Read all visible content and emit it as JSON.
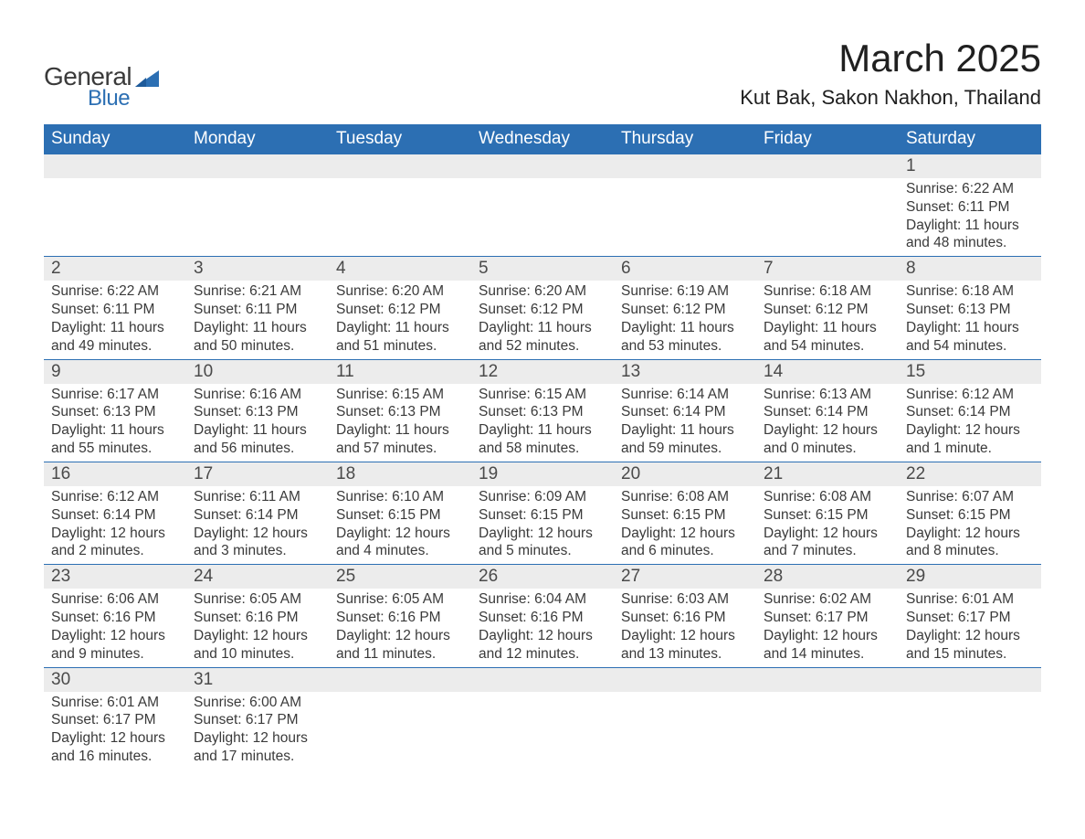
{
  "logo": {
    "text_general": "General",
    "text_blue": "Blue",
    "shape_color": "#2c6fb3",
    "general_color": "#3a3a3a"
  },
  "header": {
    "month_title": "March 2025",
    "location": "Kut Bak, Sakon Nakhon, Thailand"
  },
  "colors": {
    "header_bg": "#2c6fb3",
    "header_fg": "#ffffff",
    "daynum_bg": "#ececec",
    "row_divider": "#2c6fb3",
    "text": "#3a3a3a",
    "title_text": "#202020",
    "page_bg": "#ffffff"
  },
  "typography": {
    "month_title_fontsize": 42,
    "location_fontsize": 22,
    "dow_fontsize": 19,
    "daynum_fontsize": 19,
    "body_fontsize": 15.5,
    "font_family": "Arial"
  },
  "days_of_week": [
    "Sunday",
    "Monday",
    "Tuesday",
    "Wednesday",
    "Thursday",
    "Friday",
    "Saturday"
  ],
  "weeks": [
    [
      {
        "day": "",
        "sunrise": "",
        "sunset": "",
        "daylight": ""
      },
      {
        "day": "",
        "sunrise": "",
        "sunset": "",
        "daylight": ""
      },
      {
        "day": "",
        "sunrise": "",
        "sunset": "",
        "daylight": ""
      },
      {
        "day": "",
        "sunrise": "",
        "sunset": "",
        "daylight": ""
      },
      {
        "day": "",
        "sunrise": "",
        "sunset": "",
        "daylight": ""
      },
      {
        "day": "",
        "sunrise": "",
        "sunset": "",
        "daylight": ""
      },
      {
        "day": "1",
        "sunrise": "Sunrise: 6:22 AM",
        "sunset": "Sunset: 6:11 PM",
        "daylight": "Daylight: 11 hours and 48 minutes."
      }
    ],
    [
      {
        "day": "2",
        "sunrise": "Sunrise: 6:22 AM",
        "sunset": "Sunset: 6:11 PM",
        "daylight": "Daylight: 11 hours and 49 minutes."
      },
      {
        "day": "3",
        "sunrise": "Sunrise: 6:21 AM",
        "sunset": "Sunset: 6:11 PM",
        "daylight": "Daylight: 11 hours and 50 minutes."
      },
      {
        "day": "4",
        "sunrise": "Sunrise: 6:20 AM",
        "sunset": "Sunset: 6:12 PM",
        "daylight": "Daylight: 11 hours and 51 minutes."
      },
      {
        "day": "5",
        "sunrise": "Sunrise: 6:20 AM",
        "sunset": "Sunset: 6:12 PM",
        "daylight": "Daylight: 11 hours and 52 minutes."
      },
      {
        "day": "6",
        "sunrise": "Sunrise: 6:19 AM",
        "sunset": "Sunset: 6:12 PM",
        "daylight": "Daylight: 11 hours and 53 minutes."
      },
      {
        "day": "7",
        "sunrise": "Sunrise: 6:18 AM",
        "sunset": "Sunset: 6:12 PM",
        "daylight": "Daylight: 11 hours and 54 minutes."
      },
      {
        "day": "8",
        "sunrise": "Sunrise: 6:18 AM",
        "sunset": "Sunset: 6:13 PM",
        "daylight": "Daylight: 11 hours and 54 minutes."
      }
    ],
    [
      {
        "day": "9",
        "sunrise": "Sunrise: 6:17 AM",
        "sunset": "Sunset: 6:13 PM",
        "daylight": "Daylight: 11 hours and 55 minutes."
      },
      {
        "day": "10",
        "sunrise": "Sunrise: 6:16 AM",
        "sunset": "Sunset: 6:13 PM",
        "daylight": "Daylight: 11 hours and 56 minutes."
      },
      {
        "day": "11",
        "sunrise": "Sunrise: 6:15 AM",
        "sunset": "Sunset: 6:13 PM",
        "daylight": "Daylight: 11 hours and 57 minutes."
      },
      {
        "day": "12",
        "sunrise": "Sunrise: 6:15 AM",
        "sunset": "Sunset: 6:13 PM",
        "daylight": "Daylight: 11 hours and 58 minutes."
      },
      {
        "day": "13",
        "sunrise": "Sunrise: 6:14 AM",
        "sunset": "Sunset: 6:14 PM",
        "daylight": "Daylight: 11 hours and 59 minutes."
      },
      {
        "day": "14",
        "sunrise": "Sunrise: 6:13 AM",
        "sunset": "Sunset: 6:14 PM",
        "daylight": "Daylight: 12 hours and 0 minutes."
      },
      {
        "day": "15",
        "sunrise": "Sunrise: 6:12 AM",
        "sunset": "Sunset: 6:14 PM",
        "daylight": "Daylight: 12 hours and 1 minute."
      }
    ],
    [
      {
        "day": "16",
        "sunrise": "Sunrise: 6:12 AM",
        "sunset": "Sunset: 6:14 PM",
        "daylight": "Daylight: 12 hours and 2 minutes."
      },
      {
        "day": "17",
        "sunrise": "Sunrise: 6:11 AM",
        "sunset": "Sunset: 6:14 PM",
        "daylight": "Daylight: 12 hours and 3 minutes."
      },
      {
        "day": "18",
        "sunrise": "Sunrise: 6:10 AM",
        "sunset": "Sunset: 6:15 PM",
        "daylight": "Daylight: 12 hours and 4 minutes."
      },
      {
        "day": "19",
        "sunrise": "Sunrise: 6:09 AM",
        "sunset": "Sunset: 6:15 PM",
        "daylight": "Daylight: 12 hours and 5 minutes."
      },
      {
        "day": "20",
        "sunrise": "Sunrise: 6:08 AM",
        "sunset": "Sunset: 6:15 PM",
        "daylight": "Daylight: 12 hours and 6 minutes."
      },
      {
        "day": "21",
        "sunrise": "Sunrise: 6:08 AM",
        "sunset": "Sunset: 6:15 PM",
        "daylight": "Daylight: 12 hours and 7 minutes."
      },
      {
        "day": "22",
        "sunrise": "Sunrise: 6:07 AM",
        "sunset": "Sunset: 6:15 PM",
        "daylight": "Daylight: 12 hours and 8 minutes."
      }
    ],
    [
      {
        "day": "23",
        "sunrise": "Sunrise: 6:06 AM",
        "sunset": "Sunset: 6:16 PM",
        "daylight": "Daylight: 12 hours and 9 minutes."
      },
      {
        "day": "24",
        "sunrise": "Sunrise: 6:05 AM",
        "sunset": "Sunset: 6:16 PM",
        "daylight": "Daylight: 12 hours and 10 minutes."
      },
      {
        "day": "25",
        "sunrise": "Sunrise: 6:05 AM",
        "sunset": "Sunset: 6:16 PM",
        "daylight": "Daylight: 12 hours and 11 minutes."
      },
      {
        "day": "26",
        "sunrise": "Sunrise: 6:04 AM",
        "sunset": "Sunset: 6:16 PM",
        "daylight": "Daylight: 12 hours and 12 minutes."
      },
      {
        "day": "27",
        "sunrise": "Sunrise: 6:03 AM",
        "sunset": "Sunset: 6:16 PM",
        "daylight": "Daylight: 12 hours and 13 minutes."
      },
      {
        "day": "28",
        "sunrise": "Sunrise: 6:02 AM",
        "sunset": "Sunset: 6:17 PM",
        "daylight": "Daylight: 12 hours and 14 minutes."
      },
      {
        "day": "29",
        "sunrise": "Sunrise: 6:01 AM",
        "sunset": "Sunset: 6:17 PM",
        "daylight": "Daylight: 12 hours and 15 minutes."
      }
    ],
    [
      {
        "day": "30",
        "sunrise": "Sunrise: 6:01 AM",
        "sunset": "Sunset: 6:17 PM",
        "daylight": "Daylight: 12 hours and 16 minutes."
      },
      {
        "day": "31",
        "sunrise": "Sunrise: 6:00 AM",
        "sunset": "Sunset: 6:17 PM",
        "daylight": "Daylight: 12 hours and 17 minutes."
      },
      {
        "day": "",
        "sunrise": "",
        "sunset": "",
        "daylight": ""
      },
      {
        "day": "",
        "sunrise": "",
        "sunset": "",
        "daylight": ""
      },
      {
        "day": "",
        "sunrise": "",
        "sunset": "",
        "daylight": ""
      },
      {
        "day": "",
        "sunrise": "",
        "sunset": "",
        "daylight": ""
      },
      {
        "day": "",
        "sunrise": "",
        "sunset": "",
        "daylight": ""
      }
    ]
  ]
}
